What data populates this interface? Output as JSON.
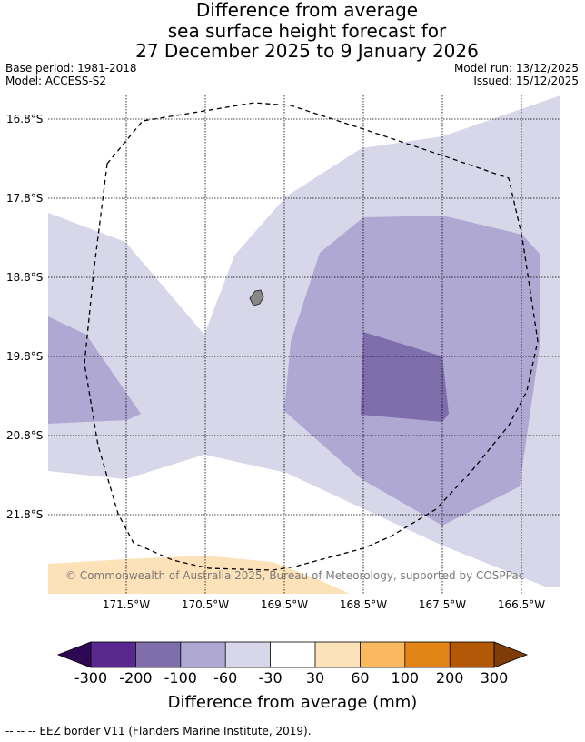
{
  "title": {
    "line1": "Difference from average",
    "line2": "sea surface height forecast for",
    "line3": "27 December 2025 to 9 January 2026"
  },
  "meta": {
    "base_period": "Base period: 1981-2018",
    "model": "Model: ACCESS-S2",
    "model_run": "Model run: 13/12/2025",
    "issued": "Issued: 15/12/2025"
  },
  "map": {
    "lat_labels": [
      "16.8°S",
      "17.8°S",
      "18.8°S",
      "19.8°S",
      "20.8°S",
      "21.8°S"
    ],
    "lon_labels": [
      "171.5°W",
      "170.5°W",
      "169.5°W",
      "168.5°W",
      "167.5°W",
      "166.5°W"
    ],
    "copyright": "© Commonwealth of Australia 2025, Bureau of Meteorology, supported by COSPPac",
    "colors": {
      "ocean_bg": "#ffffff",
      "range_neg60_neg30": "#d7d7e9",
      "range_neg100_neg60": "#afa8d2",
      "range_neg200_neg100": "#7e6eab",
      "range_30_60": "#fde1b8",
      "island": "#888888",
      "grid": "#000000"
    }
  },
  "colorbar": {
    "ticks": [
      "-300",
      "-200",
      "-100",
      "-60",
      "-30",
      "30",
      "60",
      "100",
      "200",
      "300"
    ],
    "colors": [
      "#5a278f",
      "#7e6eab",
      "#afa8d2",
      "#d7d7e9",
      "#ffffff",
      "#fde1b8",
      "#fbb95f",
      "#e28416",
      "#b35807"
    ],
    "low_extend_color": "#2e0854",
    "high_extend_color": "#7f3b08",
    "label": "Difference from average (mm)"
  },
  "footer": {
    "legend_symbol": "--  --  --",
    "legend_text": "EEZ border V11 (Flanders Marine Institute, 2019)."
  }
}
